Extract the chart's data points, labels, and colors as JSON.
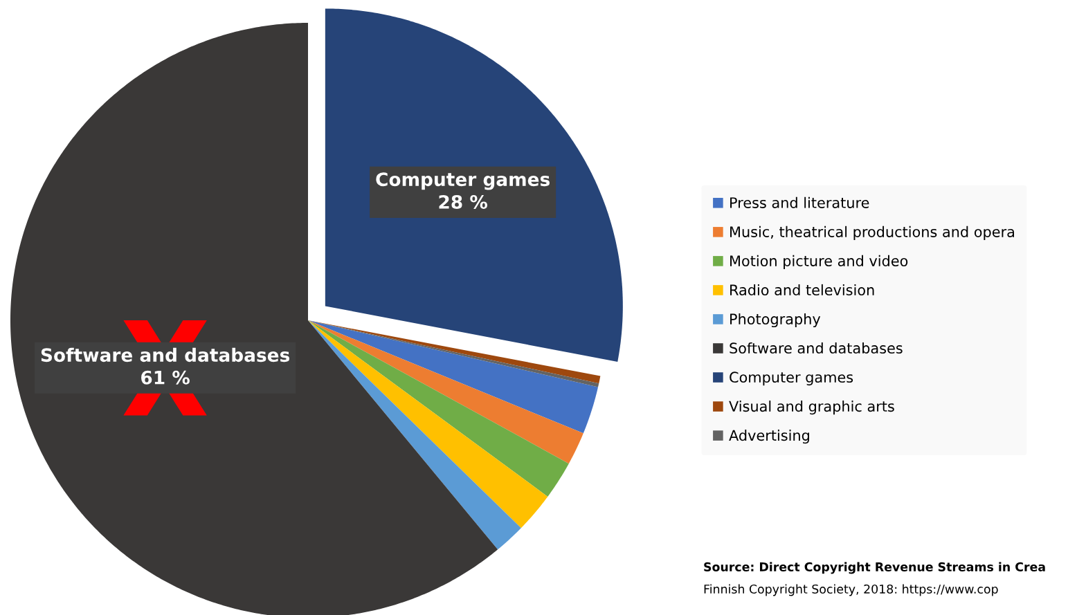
{
  "chart_data": {
    "type": "pie",
    "categories": [
      "Press and literature",
      "Music, theatrical productions and opera",
      "Motion picture and video",
      "Radio and television",
      "Photography",
      "Software and databases",
      "Computer games",
      "Visual and graphic arts",
      "Advertising"
    ],
    "values": [
      2.6,
      1.8,
      2.1,
      2.2,
      1.7,
      61,
      28,
      0.4,
      0.2
    ],
    "colors": [
      "#4472c4",
      "#ed7d31",
      "#70ad47",
      "#ffc000",
      "#5b9bd5",
      "#3a3837",
      "#264478",
      "#9e480e",
      "#636363"
    ],
    "value_labels": [
      null,
      null,
      null,
      null,
      null,
      "Software and databases\n61 %",
      "Computer games\n28 %",
      null,
      null
    ],
    "legend": "right",
    "annotations": [
      "Source: Direct Copyright Revenue Streams in Crea",
      "Finnish Copyright Society, 2018: https://www.cop"
    ]
  }
}
